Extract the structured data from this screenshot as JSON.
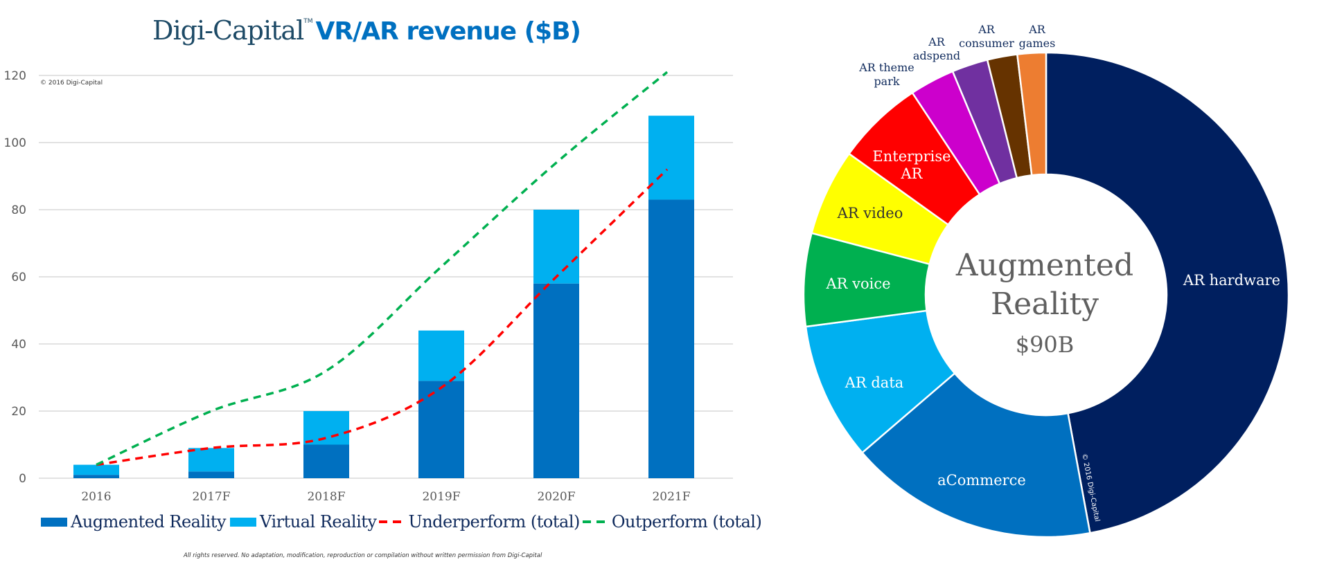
{
  "title": {
    "brand": "Digi-Capital",
    "trademark": "TM",
    "main": "VR/AR revenue ($B)"
  },
  "copyright": "© 2016 Digi-Capital",
  "footer": "All rights reserved.  No adaptation, modification, reproduction or compilation without written permission from Digi-Capital",
  "colors": {
    "augmented_reality": "#0070c0",
    "virtual_reality": "#00b0f0",
    "underperform": "#ff0000",
    "outperform": "#00b050",
    "gridline": "#d9d9d9",
    "legend_text": "#0f2a5c"
  },
  "chart_data": [
    {
      "type": "bar",
      "stacked": true,
      "title": "Digi-Capital VR/AR revenue ($B)",
      "xlabel": "",
      "ylabel": "",
      "ylim": [
        0,
        120
      ],
      "yticks": [
        0,
        20,
        40,
        60,
        80,
        100,
        120
      ],
      "grid": true,
      "legend_position": "bottom",
      "categories": [
        "2016",
        "2017F",
        "2018F",
        "2019F",
        "2020F",
        "2021F"
      ],
      "series": [
        {
          "name": "Augmented Reality",
          "kind": "bar",
          "color": "#0070c0",
          "values": [
            1,
            2,
            10,
            29,
            58,
            83
          ]
        },
        {
          "name": "Virtual Reality",
          "kind": "bar",
          "color": "#00b0f0",
          "values": [
            3,
            7,
            10,
            15,
            22,
            25
          ]
        },
        {
          "name": "Underperform (total)",
          "kind": "dashed-line",
          "color": "#ff0000",
          "values": [
            4,
            9,
            12,
            27,
            60,
            92
          ]
        },
        {
          "name": "Outperform (total)",
          "kind": "dashed-line",
          "color": "#00b050",
          "values": [
            4,
            20,
            32,
            63,
            94,
            121
          ]
        }
      ],
      "totals": [
        4,
        9,
        20,
        44,
        80,
        108
      ]
    },
    {
      "type": "pie",
      "variant": "donut",
      "title": "Augmented Reality $90B",
      "center_label": [
        "Augmented",
        "Reality",
        "$90B"
      ],
      "total": 90,
      "unit": "$B",
      "start": "top, clockwise",
      "slices": [
        {
          "label": "AR hardware",
          "percent": 47.1,
          "color": "#001f5f",
          "text_color": "#ffffff",
          "placement": "inside"
        },
        {
          "label": "aCommerce",
          "percent": 16.6,
          "color": "#0070c0",
          "text_color": "#ffffff",
          "placement": "inside"
        },
        {
          "label": "AR data",
          "percent": 9.2,
          "color": "#00b0f0",
          "text_color": "#ffffff",
          "placement": "inside"
        },
        {
          "label": "AR voice",
          "percent": 6.2,
          "color": "#00b050",
          "text_color": "#ffffff",
          "placement": "inside"
        },
        {
          "label": "AR video",
          "percent": 5.8,
          "color": "#ffff00",
          "text_color": "#333333",
          "placement": "inside"
        },
        {
          "label": "Enterprise AR",
          "percent": 5.8,
          "color": "#ff0000",
          "text_color": "#ffffff",
          "placement": "inside"
        },
        {
          "label": "AR theme park",
          "percent": 3.0,
          "color": "#cc00cc",
          "text_color": "#0f2a5c",
          "placement": "outside"
        },
        {
          "label": "AR adspend",
          "percent": 2.4,
          "color": "#7030a0",
          "text_color": "#0f2a5c",
          "placement": "outside"
        },
        {
          "label": "AR consumer",
          "percent": 2.0,
          "color": "#663300",
          "text_color": "#0f2a5c",
          "placement": "outside"
        },
        {
          "label": "AR games",
          "percent": 1.9,
          "color": "#ed7d31",
          "text_color": "#0f2a5c",
          "placement": "outside"
        }
      ]
    }
  ]
}
